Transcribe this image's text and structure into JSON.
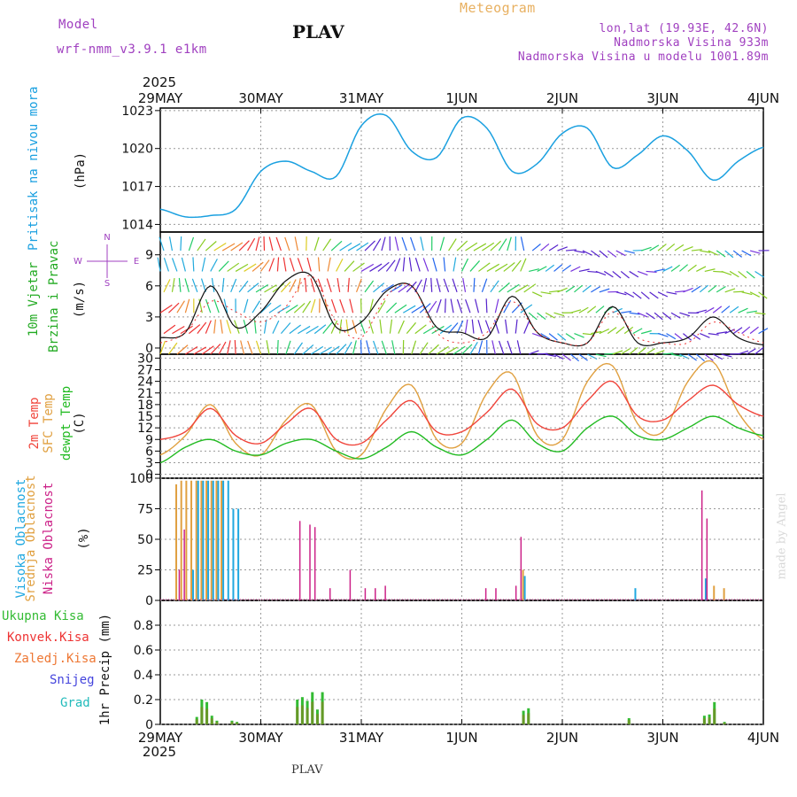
{
  "header": {
    "model_label": "Model",
    "model_name": "wrf-nmm_v3.9.1 e1km",
    "station": "PLAV",
    "meteogram": "Meteogram",
    "lonlat": "lon,lat (19.93E, 42.6N)",
    "altitude": "Nadmorska Visina 933m",
    "model_altitude": "Nadmorska Visina u modelu 1001.89m",
    "footer_station": "PLAV",
    "credit": "made by Angel"
  },
  "colors": {
    "pressure": "#1aa0e0",
    "temp2m": "#f0443a",
    "sfc": "#e0a040",
    "dewpt": "#22bb22",
    "high_cloud": "#20a8e0",
    "mid_cloud": "#e0a040",
    "low_cloud": "#cc2288",
    "total_precip": "#33bb33",
    "conv_precip": "#ee3333",
    "frozen_precip": "#ee7733",
    "snow": "#4444dd",
    "hail": "#22bbbb",
    "header_purple": "#a040c0",
    "meteogram_orange": "#e8b060"
  },
  "time_axis": {
    "top_year": "2025",
    "bottom_year": "2025",
    "labels": [
      "29MAY",
      "30MAY",
      "31MAY",
      "1JUN",
      "2JUN",
      "3JUN",
      "4JUN"
    ]
  },
  "panel_labels": {
    "pressure": [
      "Pritisak na nivou mora",
      "(hPa)"
    ],
    "wind": [
      "10m Vjetar",
      "Brzina i Pravac",
      "(m/s)"
    ],
    "wind_rose": [
      "N",
      "S",
      "W",
      "E"
    ],
    "temp": [
      "2m Temp",
      "SFC Temp",
      "dewpt Temp",
      "(C)"
    ],
    "cloud": [
      "Visoka Oblacnost",
      "Srednja Oblacnost",
      "Niska Oblacnost",
      "(%)"
    ],
    "precip_legend": [
      "Ukupna Kisa",
      "Konvek.Kisa",
      "Zaledj.Kisa",
      "Snijeg",
      "Grad"
    ],
    "precip_unit": "1hr Precip (mm)"
  },
  "chart_data": [
    {
      "type": "line",
      "name": "pressure",
      "x_days": [
        0,
        0.25,
        0.5,
        0.75,
        1,
        1.25,
        1.5,
        1.75,
        2,
        2.25,
        2.5,
        2.75,
        3,
        3.25,
        3.5,
        3.75,
        4,
        4.25,
        4.5,
        4.75,
        5,
        5.25,
        5.5,
        5.75,
        6
      ],
      "y": [
        1015.2,
        1014.6,
        1014.7,
        1015.2,
        1018.2,
        1019.0,
        1018.2,
        1017.8,
        1021.8,
        1022.6,
        1019.8,
        1019.3,
        1022.4,
        1021.6,
        1018.2,
        1018.8,
        1021.2,
        1021.6,
        1018.5,
        1019.5,
        1021.0,
        1019.8,
        1017.5,
        1019.0,
        1020.1
      ],
      "ylim": [
        1013.4,
        1023.2
      ],
      "yticks": [
        1014,
        1017,
        1020,
        1023
      ]
    },
    {
      "type": "line",
      "name": "wind",
      "x_days": [
        0,
        0.25,
        0.5,
        0.75,
        1,
        1.25,
        1.5,
        1.75,
        2,
        2.25,
        2.5,
        2.75,
        3,
        3.25,
        3.5,
        3.75,
        4,
        4.25,
        4.5,
        4.75,
        5,
        5.25,
        5.5,
        5.75,
        6
      ],
      "speed": [
        1.0,
        1.5,
        6.0,
        2.0,
        3.5,
        6.5,
        7.0,
        2.0,
        2.5,
        5.5,
        6.0,
        2.0,
        1.5,
        1.0,
        5.0,
        1.5,
        0.5,
        0.5,
        4.0,
        0.5,
        0.5,
        1.0,
        3.0,
        1.0,
        0.3
      ],
      "gust": [
        0.5,
        1.5,
        4.5,
        3.5,
        2.5,
        4.0,
        7.0,
        2.5,
        1.0,
        5.0,
        6.0,
        1.5,
        0.5,
        1.5,
        4.5,
        1.5,
        0.5,
        0.5,
        3.5,
        1.0,
        0.5,
        0.5,
        2.5,
        1.5,
        0.5
      ],
      "ylim": [
        -0.6,
        11.2
      ],
      "yticks": [
        0,
        3,
        6,
        9
      ]
    },
    {
      "type": "line",
      "name": "temperature",
      "x_days": [
        0,
        0.25,
        0.5,
        0.75,
        1,
        1.25,
        1.5,
        1.75,
        2,
        2.25,
        2.5,
        2.75,
        3,
        3.25,
        3.5,
        3.75,
        4,
        4.25,
        4.5,
        4.75,
        5,
        5.25,
        5.5,
        5.75,
        6
      ],
      "t2m": [
        9,
        11,
        17,
        10,
        8,
        13,
        17,
        9,
        8,
        14,
        19,
        11,
        11,
        16,
        22,
        13,
        12,
        19,
        24,
        15,
        14,
        19,
        23,
        18,
        15
      ],
      "sfc": [
        5,
        10,
        18,
        8,
        5,
        14,
        18,
        6,
        5,
        17,
        23,
        9,
        8,
        21,
        26,
        10,
        9,
        24,
        28,
        13,
        11,
        24,
        29,
        16,
        9
      ],
      "dewpt": [
        3,
        7,
        9,
        6,
        5,
        8,
        9,
        6,
        4,
        7,
        11,
        7,
        5,
        9,
        14,
        8,
        6,
        12,
        15,
        10,
        9,
        12,
        15,
        12,
        10
      ],
      "ylim": [
        -1,
        31
      ],
      "yticks": [
        0,
        3,
        6,
        9,
        12,
        15,
        18,
        21,
        24,
        27,
        30
      ]
    },
    {
      "type": "bar",
      "name": "cloud_cover",
      "ylim": [
        0,
        100
      ],
      "yticks": [
        0,
        25,
        50,
        75,
        100
      ],
      "high": [
        [
          0.25,
          0
        ],
        [
          0.3,
          25
        ],
        [
          0.35,
          98
        ],
        [
          0.4,
          98
        ],
        [
          0.45,
          98
        ],
        [
          0.5,
          98
        ],
        [
          0.55,
          98
        ],
        [
          0.6,
          98
        ],
        [
          0.65,
          98
        ],
        [
          0.7,
          75
        ],
        [
          0.75,
          75
        ],
        [
          3.6,
          20
        ],
        [
          5.4,
          18
        ],
        [
          4.7,
          10
        ]
      ],
      "mid": [
        [
          0.15,
          95
        ],
        [
          0.2,
          98
        ],
        [
          0.25,
          98
        ],
        [
          0.3,
          98
        ],
        [
          0.35,
          98
        ],
        [
          0.4,
          98
        ],
        [
          0.45,
          98
        ],
        [
          0.5,
          98
        ],
        [
          0.55,
          98
        ],
        [
          0.6,
          98
        ],
        [
          3.6,
          25
        ],
        [
          5.5,
          12
        ],
        [
          5.6,
          10
        ]
      ],
      "low": [
        [
          0.2,
          25
        ],
        [
          0.25,
          58
        ],
        [
          1.4,
          65
        ],
        [
          1.5,
          62
        ],
        [
          1.55,
          60
        ],
        [
          1.7,
          10
        ],
        [
          1.9,
          25
        ],
        [
          2.05,
          10
        ],
        [
          2.15,
          10
        ],
        [
          2.25,
          12
        ],
        [
          3.25,
          10
        ],
        [
          3.35,
          10
        ],
        [
          3.55,
          12
        ],
        [
          3.6,
          52
        ],
        [
          5.4,
          90
        ],
        [
          5.45,
          67
        ]
      ]
    },
    {
      "type": "bar",
      "name": "precipitation",
      "ylim": [
        0,
        1.0
      ],
      "yticks": [
        0,
        0.2,
        0.4,
        0.6,
        0.8
      ],
      "total": [
        [
          0.35,
          0.06
        ],
        [
          0.4,
          0.2
        ],
        [
          0.45,
          0.18
        ],
        [
          0.5,
          0.07
        ],
        [
          0.55,
          0.03
        ],
        [
          0.7,
          0.03
        ],
        [
          0.75,
          0.02
        ],
        [
          1.35,
          0.2
        ],
        [
          1.4,
          0.22
        ],
        [
          1.45,
          0.19
        ],
        [
          1.5,
          0.26
        ],
        [
          1.55,
          0.12
        ],
        [
          1.6,
          0.26
        ],
        [
          3.6,
          0.11
        ],
        [
          3.65,
          0.13
        ],
        [
          4.65,
          0.05
        ],
        [
          5.4,
          0.07
        ],
        [
          5.45,
          0.08
        ],
        [
          5.5,
          0.18
        ],
        [
          5.6,
          0.02
        ]
      ]
    }
  ]
}
